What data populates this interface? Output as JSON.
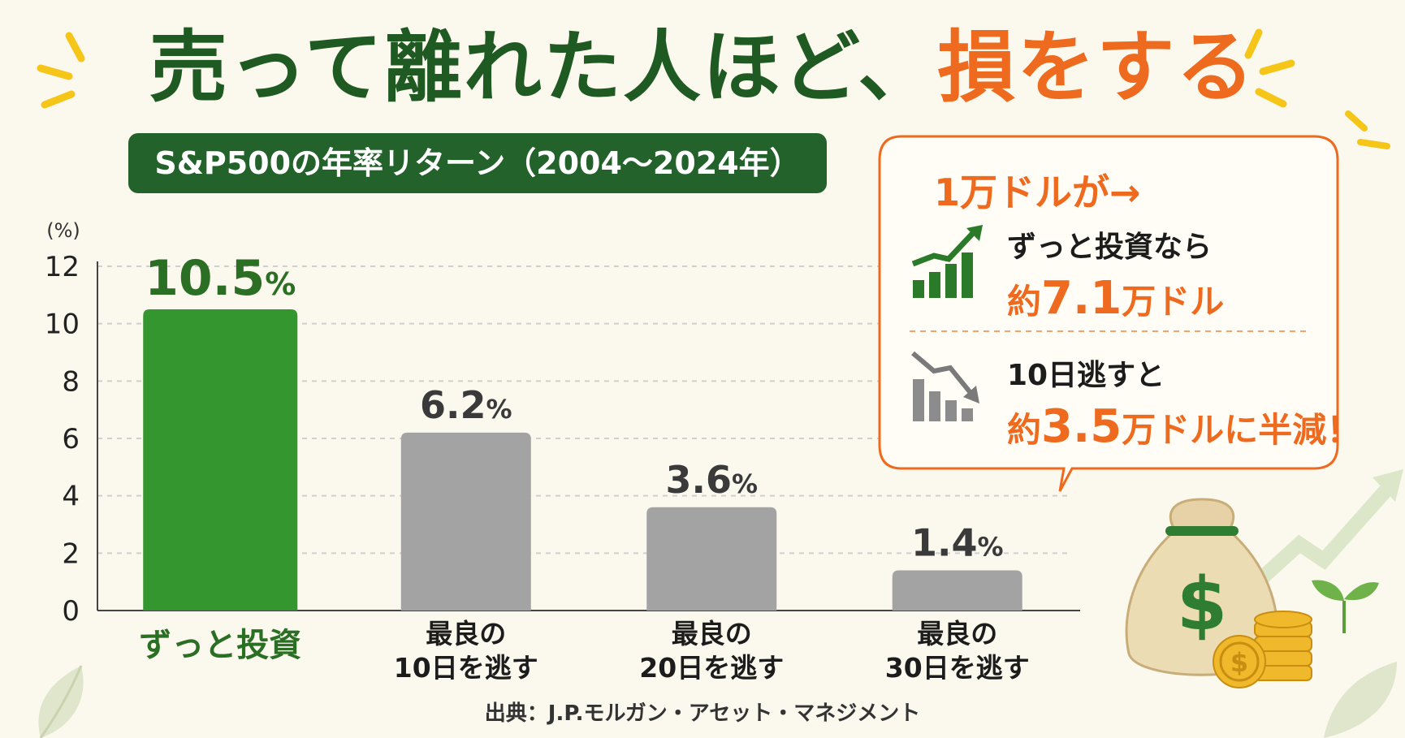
{
  "headline": {
    "part1": "売って離れた人ほど、",
    "part2": "損をする"
  },
  "chart_subtitle": "S&P500の年率リターン（2004〜2024年）",
  "chart_data": {
    "type": "bar",
    "unit_label": "(%)",
    "categories": [
      "ずっと投資",
      "最良の\n10日を逃す",
      "最良の\n20日を逃す",
      "最良の\n30日を逃す"
    ],
    "values": [
      10.5,
      6.2,
      3.6,
      1.4
    ],
    "value_labels": [
      "10.5%",
      "6.2%",
      "3.6%",
      "1.4%"
    ],
    "ylim": [
      0,
      12
    ],
    "yticks": [
      0,
      2,
      4,
      6,
      8,
      10,
      12
    ],
    "grid": true,
    "colors": [
      "#34962f",
      "#a3a3a3",
      "#a3a3a3",
      "#a3a3a3"
    ],
    "label_colors": [
      "#2a6f24",
      "#3a3a3a",
      "#3a3a3a",
      "#3a3a3a"
    ]
  },
  "callout": {
    "heading": "1万ドルが→",
    "case1_text": "ずっと投資なら",
    "case1_prefix": "約",
    "case1_number": "7.1",
    "case1_unit": "万ドル",
    "case2_text": "10日逃すと",
    "case2_prefix": "約",
    "case2_number": "3.5",
    "case2_unit": "万ドルに半減！"
  },
  "source": "出典：J.P.モルガン・アセット・マネジメント",
  "icons": [
    "rising-chart-icon",
    "falling-chart-icon",
    "money-bag-icon",
    "coin-stack-icon",
    "sprout-icon",
    "leaf-icon"
  ],
  "colors": {
    "green": "#23622a",
    "orange": "#ee6a1f",
    "gray": "#a3a3a3",
    "background": "#fbf8ee"
  }
}
